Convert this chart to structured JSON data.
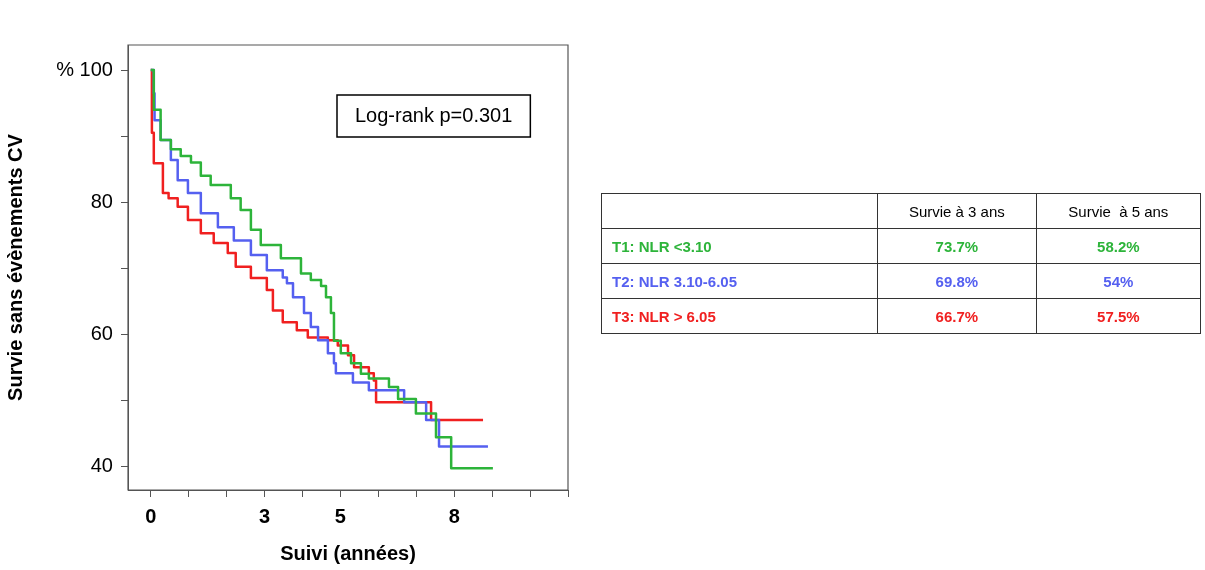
{
  "chart_data": {
    "type": "step",
    "xlabel": "Suivi (années)",
    "ylabel": "Survie sans évènements CV",
    "xlim": [
      -0.6,
      11
    ],
    "xticks": [
      0,
      {
        "value": 1,
        "label": null
      },
      {
        "value": 2,
        "label": null
      },
      3,
      {
        "value": 4,
        "label": null
      },
      5,
      {
        "value": 6,
        "label": null
      },
      {
        "value": 7,
        "label": null
      },
      8,
      {
        "value": 9,
        "label": null
      },
      {
        "value": 10,
        "label": null
      },
      {
        "value": 11,
        "label": null
      }
    ],
    "ylim": [
      36.4,
      103.8
    ],
    "yticks": [
      40,
      {
        "value": 50,
        "label": null
      },
      60,
      {
        "value": 70,
        "label": null
      },
      80,
      {
        "value": 90,
        "label": null
      },
      {
        "value": 100,
        "label": "% 100"
      }
    ],
    "grid": false,
    "legend": false,
    "marker": "none",
    "line_style": "solid",
    "annotations": [
      "Log-rank p=0.301",
      "Survie à 3 ans",
      "Survie  à 5 ans",
      "73.7%",
      "58.2%",
      "69.8%",
      "54%",
      "66.7%",
      "57.5%"
    ],
    "series": [
      {
        "name": "T1: NLR <3.10",
        "color": "#2db43a",
        "x": [
          0,
          0.08,
          0.26,
          0.53,
          0.79,
          1.06,
          1.32,
          1.58,
          2.11,
          2.37,
          2.64,
          2.9,
          3.43,
          3.96,
          4.22,
          4.49,
          4.62,
          4.75,
          4.83,
          5.01,
          5.28,
          5.54,
          5.75,
          6.28,
          6.52,
          6.99,
          7.52,
          7.92,
          9.02
        ],
        "values": [
          100,
          94,
          89.4,
          88,
          87,
          86,
          84,
          82.6,
          80.6,
          78.8,
          75.8,
          73.5,
          71.5,
          69.2,
          68.2,
          67.3,
          65.6,
          63.2,
          59,
          57.1,
          55.6,
          54,
          53.3,
          52,
          50.2,
          48,
          44.4,
          39.7,
          39.7
        ]
      },
      {
        "name": "T2: NLR 3.10-6.05",
        "color": "#5560f0",
        "x": [
          0,
          0.08,
          0.1,
          0.26,
          0.53,
          0.71,
          0.98,
          1.32,
          1.77,
          2.19,
          2.64,
          3.06,
          3.48,
          3.59,
          3.75,
          4.04,
          4.22,
          4.41,
          4.67,
          4.83,
          4.88,
          5.33,
          5.75,
          6.68,
          7.26,
          7.6,
          8.89
        ],
        "values": [
          100,
          96.5,
          92.4,
          89.4,
          86.4,
          83.3,
          81.4,
          78.3,
          76.2,
          74.2,
          72,
          69.7,
          68.6,
          67.7,
          65.6,
          63.2,
          61.1,
          59.1,
          57.1,
          55.6,
          54.1,
          52.7,
          51.5,
          49.7,
          47,
          43,
          43
        ]
      },
      {
        "name": "T3: NLR > 6.05",
        "color": "#f02020",
        "x": [
          0,
          0.03,
          0.08,
          0.32,
          0.47,
          0.71,
          0.98,
          1.32,
          1.66,
          2.03,
          2.24,
          2.64,
          3.06,
          3.22,
          3.48,
          3.85,
          4.14,
          4.67,
          4.93,
          5.2,
          5.36,
          5.75,
          5.88,
          5.94,
          7.39,
          8.76
        ],
        "values": [
          100,
          90.5,
          85.9,
          81.4,
          80.6,
          79.3,
          77.3,
          75.3,
          73.8,
          72.3,
          70.2,
          68.5,
          66.7,
          63.6,
          61.8,
          60.6,
          59.5,
          59.1,
          58.3,
          56.8,
          55,
          54.1,
          53,
          49.7,
          47,
          47
        ]
      }
    ]
  }
}
